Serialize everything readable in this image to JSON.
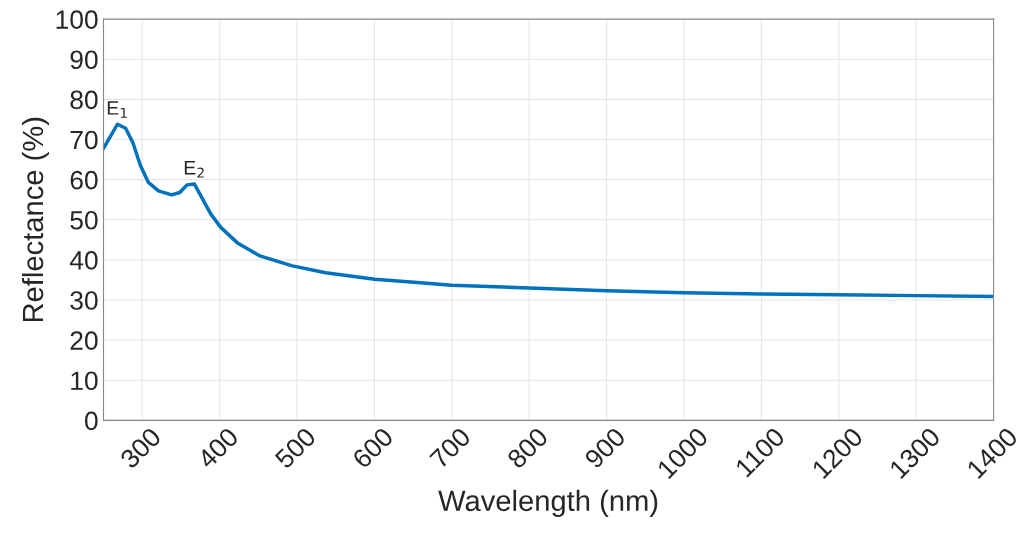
{
  "chart_data": {
    "type": "line",
    "xlabel": "Wavelength (nm)",
    "ylabel": "Reflectance (%)",
    "x": [
      250,
      268,
      278.6,
      288,
      297.6,
      308,
      321,
      338,
      348.5,
      358,
      367.5,
      388.7,
      401.5,
      422.7,
      452,
      494,
      537,
      600.5,
      647,
      700,
      800,
      900,
      1000,
      1100,
      1200,
      1300,
      1400
    ],
    "series": [
      {
        "color": "#0072bd",
        "values": [
          67.8,
          73.8,
          72.8,
          69.2,
          63.6,
          59.3,
          57.2,
          56.2,
          56.8,
          58.7,
          58.9,
          51.4,
          48.1,
          44.3,
          41.0,
          38.5,
          36.8,
          35.2,
          34.5,
          33.7,
          33.0,
          32.3,
          31.8,
          31.5,
          31.3,
          31.1,
          30.9
        ]
      }
    ],
    "annotations": [
      {
        "text": "E$_{1}$",
        "x": 268,
        "y": 73.8
      },
      {
        "text": "E$_{2}$",
        "x": 367.5,
        "y": 58.9
      }
    ],
    "xlim": [
      250,
      1400
    ],
    "xticks": [
      300,
      400,
      500,
      600,
      700,
      800,
      900,
      1000,
      1100,
      1200,
      1300,
      1400
    ],
    "ylim": [
      0,
      100
    ],
    "yticks": [
      0,
      10,
      20,
      30,
      40,
      50,
      60,
      70,
      80,
      90,
      100
    ],
    "grid": true,
    "marker": "none",
    "line_style": "solid"
  }
}
